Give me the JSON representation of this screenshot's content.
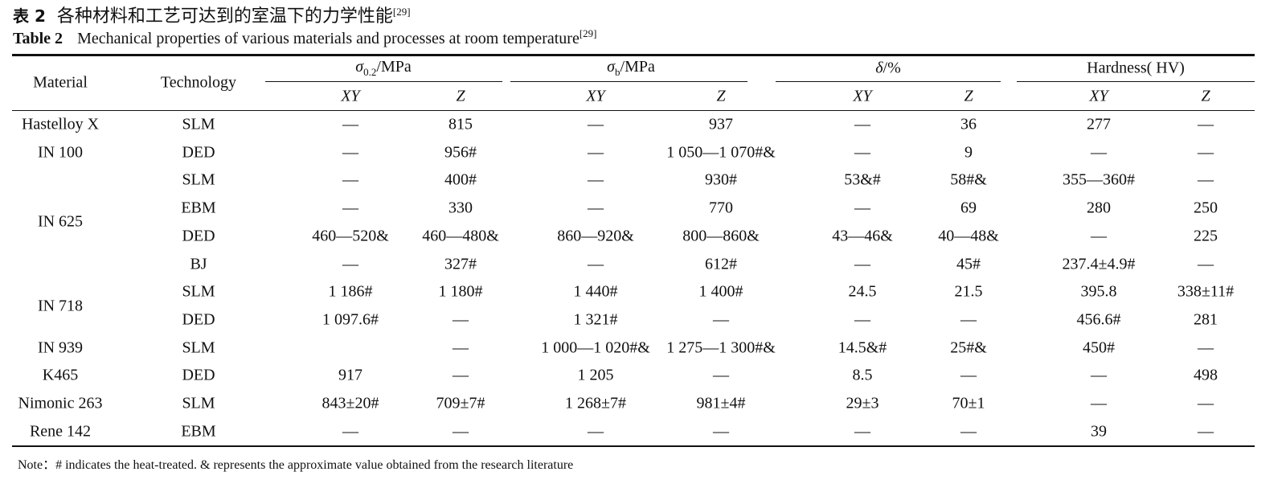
{
  "caption": {
    "cn_label": "表 2",
    "cn_title": "各种材料和工艺可达到的室温下的力学性能",
    "en_label": "Table 2",
    "en_title": "Mechanical properties of various materials and processes at room temperature",
    "ref": "[29]"
  },
  "header": {
    "material": "Material",
    "technology": "Technology",
    "groups": [
      {
        "symbol": "σ",
        "sub": "0.2",
        "unit": "/MPa"
      },
      {
        "symbol": "σ",
        "sub": "b",
        "unit": "/MPa"
      },
      {
        "symbol": "δ",
        "sub": "",
        "unit": "/%"
      },
      {
        "symbol": "Hardness( HV)",
        "sub": "",
        "unit": ""
      }
    ],
    "sub_xy": "XY",
    "sub_z": "Z"
  },
  "materials": [
    "Hastelloy X",
    "IN 100",
    "IN 625",
    "IN 718",
    "IN 939",
    "K465",
    "Nimonic 263",
    "Rene 142"
  ],
  "rows": [
    [
      "SLM",
      "—",
      "815",
      "—",
      "937",
      "—",
      "36",
      "277",
      "—"
    ],
    [
      "DED",
      "—",
      "956#",
      "—",
      "1 050—1 070#&",
      "—",
      "9",
      "—",
      "—"
    ],
    [
      "SLM",
      "—",
      "400#",
      "—",
      "930#",
      "53&#",
      "58#&",
      "355—360#",
      "—"
    ],
    [
      "EBM",
      "—",
      "330",
      "—",
      "770",
      "—",
      "69",
      "280",
      "250"
    ],
    [
      "DED",
      "460—520&",
      "460—480&",
      "860—920&",
      "800—860&",
      "43—46&",
      "40—48&",
      "—",
      "225"
    ],
    [
      "BJ",
      "—",
      "327#",
      "—",
      "612#",
      "—",
      "45#",
      "237.4±4.9#",
      "—"
    ],
    [
      "SLM",
      "1 186#",
      "1 180#",
      "1 440#",
      "1 400#",
      "24.5",
      "21.5",
      "395.8",
      "338±11#"
    ],
    [
      "DED",
      "1 097.6#",
      "—",
      "1 321#",
      "—",
      "—",
      "—",
      "456.6#",
      "281"
    ],
    [
      "SLM",
      "",
      "—",
      "1 000—1 020#&",
      "1 275—1 300#&",
      "14.5&#",
      "25#&",
      "450#",
      "—"
    ],
    [
      "DED",
      "917",
      "—",
      "1 205",
      "—",
      "8.5",
      "—",
      "—",
      "498"
    ],
    [
      "SLM",
      "843±20#",
      "709±7#",
      "1 268±7#",
      "981±4#",
      "29±3",
      "70±1",
      "—",
      "—"
    ],
    [
      "EBM",
      "—",
      "—",
      "—",
      "—",
      "—",
      "—",
      "39",
      "—"
    ]
  ],
  "note": "Note：# indicates the heat-treated. & represents the approximate value obtained from the research literature"
}
